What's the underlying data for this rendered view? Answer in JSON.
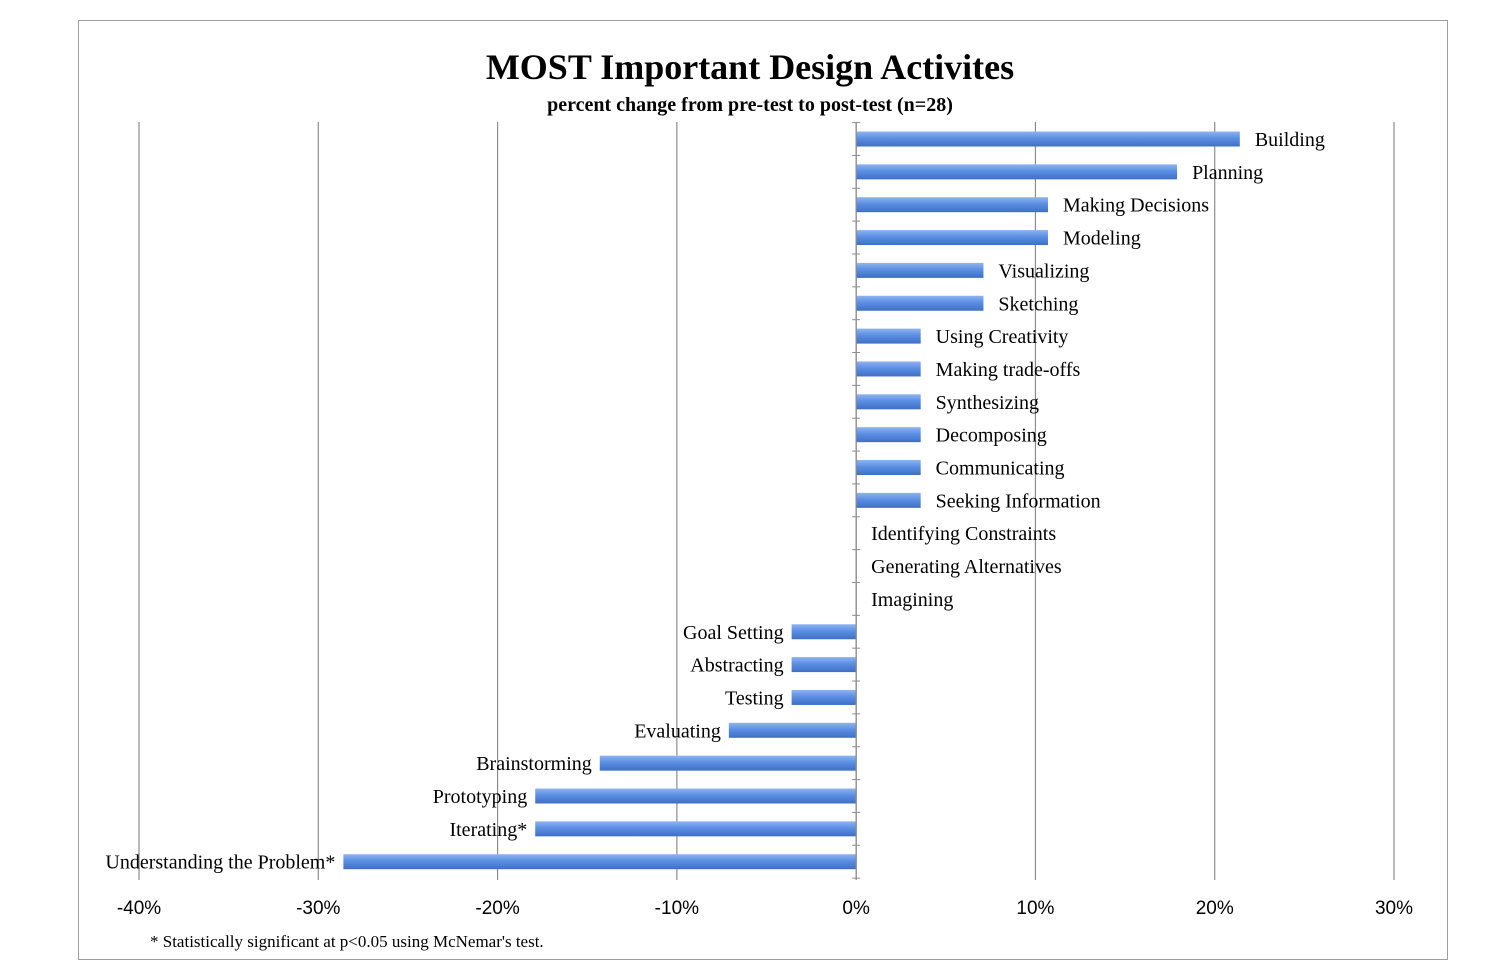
{
  "chart_data": {
    "type": "bar",
    "orientation": "horizontal",
    "title": "MOST Important Design Activites",
    "subtitle": "percent change from pre-test to post-test (n=28)",
    "footnote": "* Statistically significant at p<0.05 using McNemar's test.",
    "xlim": [
      -40,
      30
    ],
    "xticks": [
      "-40%",
      "-30%",
      "-20%",
      "-10%",
      "0%",
      "10%",
      "20%",
      "30%"
    ],
    "grid": true,
    "bar_color": "#5b8fe3",
    "categories": [
      "Building",
      "Planning",
      "Making Decisions",
      "Modeling",
      "Visualizing",
      "Sketching",
      "Using Creativity",
      "Making trade-offs",
      "Synthesizing",
      "Decomposing",
      "Communicating",
      "Seeking Information",
      "Identifying Constraints",
      "Generating Alternatives",
      "Imagining",
      "Goal Setting",
      "Abstracting",
      "Testing",
      "Evaluating",
      "Brainstorming",
      "Prototyping",
      "Iterating*",
      "Understanding the Problem*"
    ],
    "values": [
      21.4,
      17.9,
      10.7,
      10.7,
      7.1,
      7.1,
      3.6,
      3.6,
      3.6,
      3.6,
      3.6,
      3.6,
      0,
      0,
      0,
      -3.6,
      -3.6,
      -3.6,
      -7.1,
      -14.3,
      -17.9,
      -17.9,
      -28.6
    ]
  }
}
